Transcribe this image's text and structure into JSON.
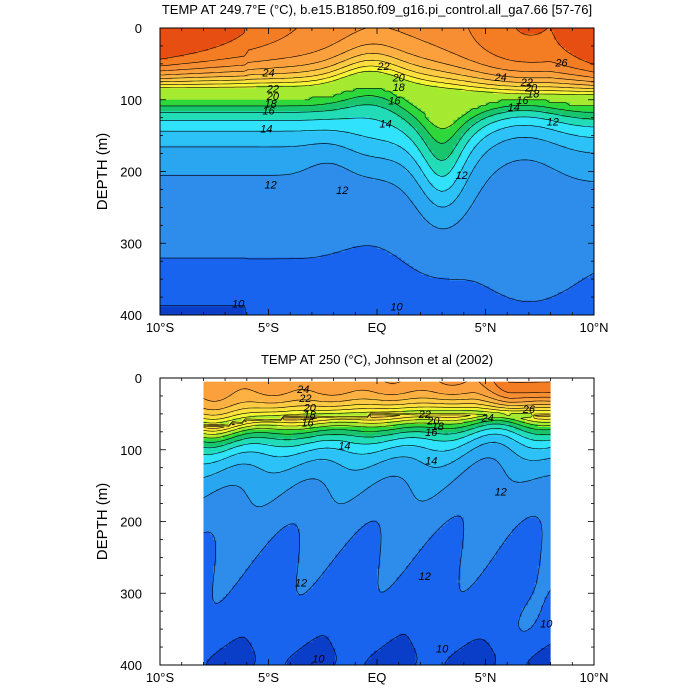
{
  "chart_data": [
    {
      "type": "contour",
      "title": "TEMP AT 249.7°E (°C), b.e15.B1850.f09_g16.pi_control.all_ga7.66 [57-76]",
      "ylabel": "DEPTH (m)",
      "x_tick_labels": [
        "10°S",
        "5°S",
        "EQ",
        "5°N",
        "10°N"
      ],
      "y_tick_labels": [
        "0",
        "100",
        "200",
        "300",
        "400"
      ],
      "xlim": [
        -10,
        10
      ],
      "ylim": [
        400,
        0
      ],
      "contour_levels": [
        10,
        11,
        12,
        13,
        14,
        15,
        16,
        17,
        18,
        19,
        20,
        21,
        22,
        23,
        24,
        25,
        26
      ],
      "contour_labels": [
        {
          "text": "24",
          "x": -5.0,
          "y": 62
        },
        {
          "text": "22",
          "x": -4.8,
          "y": 84
        },
        {
          "text": "20",
          "x": -4.8,
          "y": 95
        },
        {
          "text": "18",
          "x": -4.9,
          "y": 105
        },
        {
          "text": "16",
          "x": -5.0,
          "y": 115
        },
        {
          "text": "14",
          "x": -5.1,
          "y": 140
        },
        {
          "text": "12",
          "x": -4.9,
          "y": 218
        },
        {
          "text": "10",
          "x": -6.4,
          "y": 384
        },
        {
          "text": "22",
          "x": 0.3,
          "y": 53
        },
        {
          "text": "20",
          "x": 1.0,
          "y": 69
        },
        {
          "text": "18",
          "x": 1.0,
          "y": 82
        },
        {
          "text": "16",
          "x": 0.8,
          "y": 101
        },
        {
          "text": "14",
          "x": 0.4,
          "y": 133
        },
        {
          "text": "12",
          "x": -1.6,
          "y": 226
        },
        {
          "text": "10",
          "x": 0.9,
          "y": 388
        },
        {
          "text": "12",
          "x": 3.9,
          "y": 205
        },
        {
          "text": "24",
          "x": 5.7,
          "y": 68
        },
        {
          "text": "22",
          "x": 6.9,
          "y": 75
        },
        {
          "text": "20",
          "x": 7.1,
          "y": 83
        },
        {
          "text": "18",
          "x": 7.2,
          "y": 91
        },
        {
          "text": "16",
          "x": 6.7,
          "y": 100
        },
        {
          "text": "14",
          "x": 6.3,
          "y": 110
        },
        {
          "text": "12",
          "x": 8.1,
          "y": 130
        },
        {
          "text": "26",
          "x": 8.5,
          "y": 48
        }
      ]
    },
    {
      "type": "contour",
      "title": "TEMP AT 250 (°C), Johnson et al (2002)",
      "ylabel": "DEPTH (m)",
      "x_tick_labels": [
        "10°S",
        "5°S",
        "EQ",
        "5°N",
        "10°N"
      ],
      "y_tick_labels": [
        "0",
        "100",
        "200",
        "300",
        "400"
      ],
      "xlim": [
        -10,
        10
      ],
      "ylim": [
        400,
        0
      ],
      "data_extent_x": [
        -8,
        8
      ],
      "data_extent_y": [
        5,
        400
      ],
      "contour_levels": [
        10,
        11,
        12,
        13,
        14,
        15,
        16,
        17,
        18,
        19,
        20,
        21,
        22,
        23,
        24,
        25,
        26
      ],
      "contour_labels": [
        {
          "text": "24",
          "x": -3.4,
          "y": 15
        },
        {
          "text": "22",
          "x": -3.3,
          "y": 28
        },
        {
          "text": "20",
          "x": -3.1,
          "y": 41
        },
        {
          "text": "18",
          "x": -3.1,
          "y": 51
        },
        {
          "text": "16",
          "x": -3.2,
          "y": 62
        },
        {
          "text": "14",
          "x": -1.5,
          "y": 94
        },
        {
          "text": "14",
          "x": 2.5,
          "y": 115
        },
        {
          "text": "12",
          "x": -3.5,
          "y": 285
        },
        {
          "text": "12",
          "x": 2.2,
          "y": 276
        },
        {
          "text": "12",
          "x": 5.7,
          "y": 158
        },
        {
          "text": "10",
          "x": -2.7,
          "y": 391
        },
        {
          "text": "10",
          "x": 3.0,
          "y": 377
        },
        {
          "text": "10",
          "x": 7.8,
          "y": 342
        },
        {
          "text": "22",
          "x": 2.2,
          "y": 50
        },
        {
          "text": "20",
          "x": 2.6,
          "y": 59
        },
        {
          "text": "18",
          "x": 2.8,
          "y": 67
        },
        {
          "text": "16",
          "x": 2.5,
          "y": 75
        },
        {
          "text": "24",
          "x": 5.1,
          "y": 55
        },
        {
          "text": "26",
          "x": 7.0,
          "y": 43
        }
      ]
    }
  ]
}
